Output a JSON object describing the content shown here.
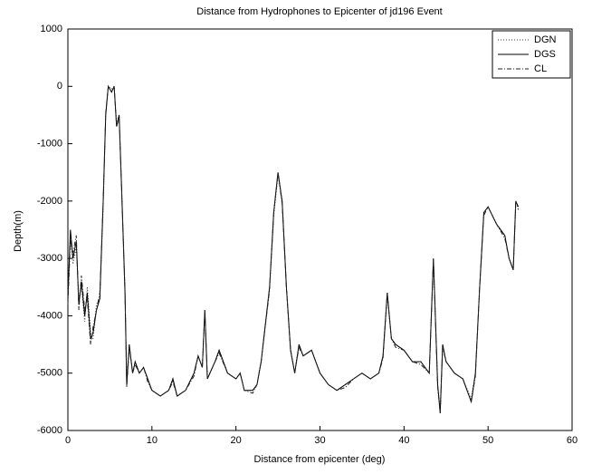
{
  "chart_data": {
    "type": "line",
    "title": "Distance from Hydrophones to Epicenter of jd196 Event",
    "x_label": "Distance from epicenter (deg)",
    "y_label": "Depth(m)",
    "x": [
      0,
      0.3,
      0.6,
      1,
      1.3,
      1.6,
      2,
      2.3,
      2.7,
      3,
      3.4,
      3.8,
      4.2,
      4.5,
      4.8,
      5.2,
      5.5,
      5.8,
      6.1,
      6.4,
      6.8,
      7,
      7.3,
      7.7,
      8,
      8.5,
      9,
      9.5,
      10,
      11,
      12,
      12.5,
      13,
      14,
      15,
      15.5,
      16,
      16.3,
      16.6,
      17.5,
      18,
      19,
      20,
      20.5,
      21,
      22,
      22.5,
      23,
      24,
      24.5,
      25,
      25.5,
      26,
      26.5,
      27,
      27.5,
      28,
      29,
      30,
      31,
      32,
      33,
      34,
      35,
      36,
      37,
      37.5,
      38,
      38.5,
      39,
      40,
      41,
      42,
      43,
      43.5,
      44,
      44.3,
      44.6,
      45,
      46,
      47,
      48,
      48.5,
      49,
      49.5,
      50,
      51,
      52,
      52.5,
      53,
      53.3,
      53.6
    ],
    "series": [
      {
        "name": "DGN",
        "color": "#333333",
        "line_style": "dotted",
        "values": [
          -3600,
          -2600,
          -3100,
          -2800,
          -3700,
          -3500,
          -4100,
          -3500,
          -4300,
          -4400,
          -3800,
          -3700,
          -2100,
          -500,
          0,
          -50,
          0,
          -650,
          -500,
          -1800,
          -3500,
          -5150,
          -4500,
          -5000,
          -4800,
          -5000,
          -4900,
          -5100,
          -5300,
          -5400,
          -5300,
          -5100,
          -5400,
          -5300,
          -5000,
          -4700,
          -4900,
          -3950,
          -5100,
          -4800,
          -4600,
          -5000,
          -5100,
          -5000,
          -5300,
          -5300,
          -5200,
          -4800,
          -3500,
          -2250,
          -1550,
          -2000,
          -3500,
          -4600,
          -5000,
          -4500,
          -4700,
          -4600,
          -5000,
          -5200,
          -5300,
          -5200,
          -5100,
          -5000,
          -5100,
          -5000,
          -4700,
          -3650,
          -4400,
          -4500,
          -4600,
          -4800,
          -4800,
          -5000,
          -3050,
          -5200,
          -5650,
          -4500,
          -4800,
          -5000,
          -5100,
          -5450,
          -5000,
          -3500,
          -2200,
          -2100,
          -2400,
          -2600,
          -3000,
          -3200,
          -2050,
          -2100
        ]
      },
      {
        "name": "DGS",
        "color": "#000000",
        "line_style": "solid",
        "values": [
          -3700,
          -2500,
          -3000,
          -2700,
          -3800,
          -3400,
          -4000,
          -3600,
          -4400,
          -4300,
          -3900,
          -3700,
          -2000,
          -500,
          0,
          -100,
          0,
          -700,
          -500,
          -1800,
          -3600,
          -5200,
          -4500,
          -5000,
          -4800,
          -5000,
          -4900,
          -5100,
          -5300,
          -5400,
          -5300,
          -5100,
          -5400,
          -5300,
          -5000,
          -4700,
          -4900,
          -3900,
          -5100,
          -4800,
          -4600,
          -5000,
          -5100,
          -5000,
          -5300,
          -5300,
          -5200,
          -4800,
          -3500,
          -2200,
          -1500,
          -2000,
          -3500,
          -4600,
          -5000,
          -4500,
          -4700,
          -4600,
          -5000,
          -5200,
          -5300,
          -5200,
          -5100,
          -5000,
          -5100,
          -5000,
          -4700,
          -3600,
          -4400,
          -4500,
          -4600,
          -4800,
          -4800,
          -5000,
          -3000,
          -5200,
          -5700,
          -4500,
          -4800,
          -5000,
          -5100,
          -5500,
          -5000,
          -3500,
          -2200,
          -2100,
          -2400,
          -2600,
          -3000,
          -3200,
          -2000,
          -2100
        ]
      },
      {
        "name": "CL",
        "color": "#222222",
        "line_style": "dashdot",
        "values": [
          -3800,
          -2700,
          -2900,
          -2600,
          -3900,
          -3300,
          -3900,
          -3700,
          -4500,
          -4200,
          -3900,
          -3600,
          -2000,
          -450,
          0,
          -100,
          0,
          -700,
          -550,
          -1850,
          -3600,
          -5250,
          -4550,
          -5000,
          -4850,
          -5000,
          -4900,
          -5150,
          -5300,
          -5400,
          -5300,
          -5150,
          -5400,
          -5300,
          -5050,
          -4700,
          -4900,
          -3900,
          -5100,
          -4800,
          -4650,
          -5000,
          -5100,
          -5000,
          -5300,
          -5350,
          -5200,
          -4800,
          -3550,
          -2200,
          -1500,
          -2050,
          -3500,
          -4600,
          -5000,
          -4550,
          -4700,
          -4600,
          -5000,
          -5200,
          -5300,
          -5250,
          -5100,
          -5000,
          -5100,
          -5000,
          -4750,
          -3600,
          -4400,
          -4550,
          -4600,
          -4800,
          -4850,
          -5000,
          -3000,
          -5250,
          -5700,
          -4550,
          -4800,
          -5000,
          -5100,
          -5500,
          -5050,
          -3500,
          -2250,
          -2100,
          -2400,
          -2650,
          -3000,
          -3200,
          -2000,
          -2150
        ]
      }
    ],
    "xlim": [
      0,
      60
    ],
    "ylim": [
      -6000,
      1000
    ],
    "xticks": [
      0,
      10,
      20,
      30,
      40,
      50,
      60
    ],
    "yticks": [
      -6000,
      -5000,
      -4000,
      -3000,
      -2000,
      -1000,
      0,
      1000
    ],
    "grid": false,
    "legend_position": "upper right"
  }
}
